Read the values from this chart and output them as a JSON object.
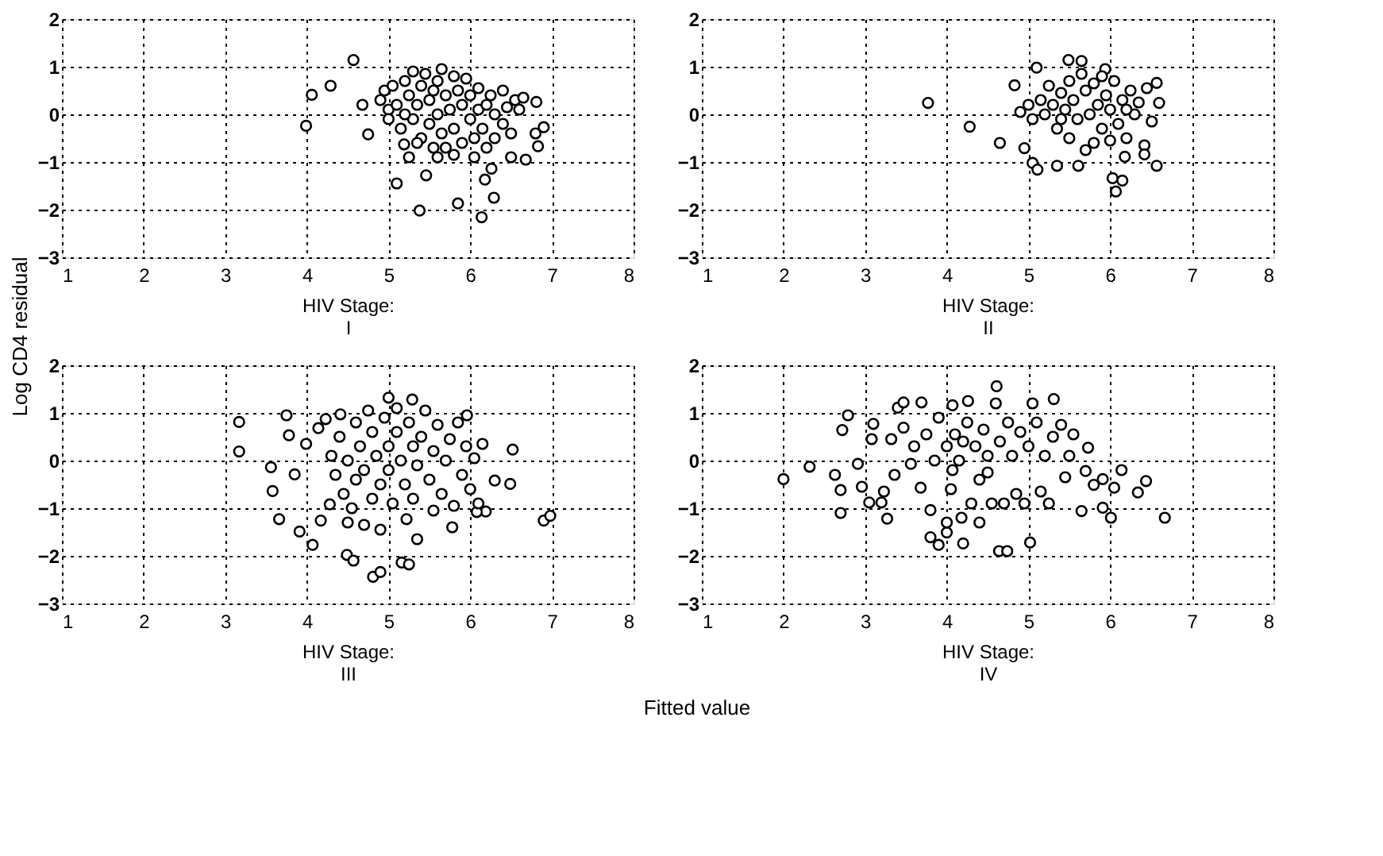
{
  "chart_data": [
    {
      "type": "scatter",
      "xlabel": "HIV Stage:\nI",
      "ylabel": "Log CD4 residual",
      "annotations": [
        "Fitted value"
      ],
      "xlim": [
        1,
        8
      ],
      "ylim": [
        -3,
        2
      ],
      "xticks": [
        1,
        2,
        3,
        4,
        5,
        6,
        7,
        8
      ],
      "yticks": [
        -3,
        -2,
        -1,
        0,
        1,
        2
      ],
      "grid": true,
      "marker": "circle",
      "series": [
        {
          "color": "#000000",
          "x": [
            3.99,
            4.06,
            4.29,
            4.57,
            4.68,
            4.75,
            5.1,
            5.38,
            5.46,
            5.85,
            6.14,
            6.18,
            6.29,
            6.26,
            6.68,
            6.81,
            6.8,
            6.83,
            6.9,
            5.19,
            5.25,
            4.9,
            4.95,
            5.0,
            5.05,
            5.1,
            5.15,
            5.2,
            5.25,
            5.3,
            5.3,
            5.35,
            5.4,
            5.4,
            5.45,
            5.5,
            5.5,
            5.55,
            5.6,
            5.6,
            5.65,
            5.65,
            5.7,
            5.7,
            5.75,
            5.8,
            5.8,
            5.85,
            5.9,
            5.9,
            5.95,
            6.0,
            6.0,
            6.05,
            6.05,
            6.1,
            6.1,
            6.15,
            6.2,
            6.25,
            6.3,
            6.3,
            6.4,
            6.4,
            6.45,
            6.5,
            6.5,
            6.55,
            6.6,
            6.65,
            5.0,
            5.2,
            5.6,
            5.8,
            6.2,
            5.55,
            5.35
          ],
          "values": [
            -0.24,
            0.41,
            0.6,
            1.14,
            0.2,
            -0.42,
            -1.45,
            -2.02,
            -1.28,
            -1.87,
            -2.16,
            -1.37,
            -1.75,
            -1.14,
            -0.95,
            0.26,
            -0.4,
            -0.67,
            -0.27,
            -0.63,
            -0.9,
            0.3,
            0.5,
            0.1,
            0.6,
            0.2,
            -0.3,
            0.7,
            0.4,
            0.9,
            -0.1,
            0.2,
            0.6,
            -0.5,
            0.85,
            0.3,
            -0.2,
            -0.7,
            0.7,
            0.0,
            0.95,
            -0.4,
            0.4,
            -0.7,
            0.1,
            0.8,
            -0.3,
            0.5,
            -0.6,
            0.2,
            0.75,
            -0.1,
            0.4,
            -0.5,
            -0.9,
            0.55,
            0.1,
            -0.3,
            -0.7,
            0.4,
            0.0,
            -0.5,
            0.5,
            -0.2,
            0.15,
            -0.4,
            -0.9,
            0.3,
            0.1,
            0.35,
            -0.1,
            0.0,
            -0.9,
            -0.85,
            0.2,
            0.5,
            -0.6
          ]
        }
      ]
    },
    {
      "type": "scatter",
      "xlabel": "HIV Stage:\nII",
      "xlim": [
        1,
        8
      ],
      "ylim": [
        -3,
        2
      ],
      "xticks": [
        1,
        2,
        3,
        4,
        5,
        6,
        7,
        8
      ],
      "yticks": [
        -3,
        -2,
        -1,
        0,
        1,
        2
      ],
      "grid": true,
      "marker": "circle",
      "series": [
        {
          "color": "#000000",
          "x": [
            3.77,
            4.28,
            4.65,
            4.83,
            4.95,
            5.05,
            5.11,
            5.1,
            5.35,
            5.49,
            5.61,
            5.65,
            5.94,
            6.03,
            6.07,
            6.15,
            6.18,
            6.42,
            6.42,
            6.57,
            6.6,
            6.57,
            6.51,
            4.9,
            5.0,
            5.05,
            5.15,
            5.2,
            5.25,
            5.3,
            5.35,
            5.4,
            5.45,
            5.5,
            5.5,
            5.55,
            5.6,
            5.65,
            5.7,
            5.75,
            5.8,
            5.8,
            5.85,
            5.9,
            5.95,
            6.0,
            6.0,
            6.05,
            6.1,
            6.15,
            6.2,
            6.25,
            6.3,
            6.35,
            6.45,
            5.7,
            5.4,
            5.9,
            6.2
          ],
          "values": [
            0.24,
            -0.26,
            -0.6,
            0.61,
            -0.71,
            -1.02,
            -1.16,
            0.98,
            -1.08,
            1.14,
            -1.08,
            1.12,
            0.95,
            -1.34,
            -1.62,
            -1.39,
            -0.89,
            -0.65,
            -0.84,
            -1.08,
            0.24,
            0.66,
            -0.15,
            0.05,
            0.2,
            -0.1,
            0.3,
            0.0,
            0.6,
            0.2,
            -0.3,
            0.45,
            0.1,
            -0.5,
            0.7,
            0.3,
            -0.1,
            0.85,
            0.5,
            0.0,
            -0.6,
            0.65,
            0.2,
            -0.3,
            0.4,
            -0.55,
            0.1,
            0.7,
            -0.2,
            0.3,
            -0.5,
            0.5,
            0.0,
            0.25,
            0.55,
            -0.75,
            -0.1,
            0.8,
            0.1
          ]
        }
      ]
    },
    {
      "type": "scatter",
      "xlabel": "HIV Stage:\nIII",
      "xlim": [
        1,
        8
      ],
      "ylim": [
        -3,
        2
      ],
      "xticks": [
        1,
        2,
        3,
        4,
        5,
        6,
        7,
        8
      ],
      "yticks": [
        -3,
        -2,
        -1,
        0,
        1,
        2
      ],
      "grid": true,
      "marker": "circle",
      "series": [
        {
          "color": "#000000",
          "x": [
            3.17,
            3.17,
            3.56,
            3.58,
            3.66,
            3.75,
            3.78,
            3.85,
            3.91,
            4.07,
            3.99,
            4.14,
            4.23,
            4.28,
            4.41,
            4.49,
            4.57,
            4.81,
            4.9,
            4.9,
            5.16,
            5.25,
            5.22,
            5.35,
            5.78,
            6.52,
            6.49,
            6.3,
            6.9,
            6.98,
            5.0,
            5.29,
            5.96,
            6.19,
            6.08,
            4.17,
            4.3,
            4.35,
            4.4,
            4.45,
            4.5,
            4.55,
            4.6,
            4.6,
            4.65,
            4.7,
            4.75,
            4.8,
            4.8,
            4.85,
            4.9,
            4.95,
            5.0,
            5.0,
            5.05,
            5.1,
            5.1,
            5.15,
            5.2,
            5.25,
            5.3,
            5.3,
            5.35,
            5.4,
            5.45,
            5.5,
            5.55,
            5.6,
            5.65,
            5.7,
            5.75,
            5.8,
            5.85,
            5.9,
            5.95,
            6.0,
            6.05,
            6.1,
            6.15,
            4.7,
            4.5,
            5.55
          ],
          "values": [
            0.81,
            0.19,
            -0.14,
            -0.64,
            -1.23,
            0.95,
            0.53,
            -0.29,
            -1.49,
            -1.77,
            0.35,
            0.68,
            0.87,
            -0.92,
            0.97,
            -1.98,
            -2.1,
            -2.44,
            -2.34,
            -1.45,
            -2.14,
            -2.18,
            -1.23,
            -1.65,
            -1.4,
            0.23,
            -0.49,
            -0.42,
            -1.26,
            -1.16,
            1.32,
            1.28,
            0.95,
            -1.07,
            -1.08,
            -1.26,
            0.1,
            -0.3,
            0.5,
            -0.7,
            0.0,
            -1.0,
            0.8,
            -0.4,
            0.3,
            -0.2,
            1.05,
            0.6,
            -0.8,
            0.1,
            -0.5,
            0.9,
            0.3,
            -0.2,
            -0.9,
            1.1,
            0.6,
            0.0,
            -0.5,
            0.8,
            0.3,
            -0.8,
            -0.1,
            0.5,
            1.05,
            -0.4,
            0.2,
            0.75,
            -0.7,
            0.0,
            0.45,
            -0.95,
            0.8,
            -0.3,
            0.3,
            -0.6,
            0.05,
            -0.9,
            0.35,
            -1.35,
            -1.3,
            -1.05
          ]
        }
      ]
    },
    {
      "type": "scatter",
      "xlabel": "HIV Stage:\nIV",
      "xlim": [
        1,
        8
      ],
      "ylim": [
        -3,
        2
      ],
      "xticks": [
        1,
        2,
        3,
        4,
        5,
        6,
        7,
        8
      ],
      "yticks": [
        -3,
        -2,
        -1,
        0,
        1,
        2
      ],
      "grid": true,
      "marker": "circle",
      "series": [
        {
          "color": "#000000",
          "x": [
            2.0,
            2.32,
            2.63,
            2.7,
            2.7,
            2.72,
            2.79,
            2.91,
            2.96,
            3.05,
            3.08,
            3.1,
            3.2,
            3.27,
            3.23,
            3.32,
            3.36,
            3.4,
            3.47,
            3.47,
            3.56,
            3.68,
            3.69,
            3.8,
            3.8,
            3.9,
            4.0,
            4.0,
            4.07,
            4.07,
            4.18,
            4.2,
            4.26,
            4.4,
            4.61,
            4.64,
            4.74,
            5.02,
            5.31,
            5.65,
            5.73,
            5.91,
            6.01,
            6.14,
            6.05,
            6.34,
            6.44,
            6.67,
            5.7,
            5.8,
            5.91,
            3.6,
            3.75,
            3.85,
            3.9,
            4.0,
            4.05,
            4.1,
            4.15,
            4.25,
            4.3,
            4.35,
            4.4,
            4.45,
            4.5,
            4.55,
            4.6,
            4.65,
            4.7,
            4.75,
            4.8,
            4.85,
            4.9,
            4.95,
            5.0,
            5.05,
            5.1,
            5.15,
            5.2,
            5.25,
            5.3,
            5.4,
            5.45,
            5.5,
            5.55,
            4.2,
            4.5
          ],
          "values": [
            -0.39,
            -0.13,
            -0.3,
            -0.62,
            -1.1,
            0.64,
            0.95,
            -0.07,
            -0.55,
            -0.88,
            0.45,
            0.77,
            -0.88,
            -1.22,
            -0.65,
            0.45,
            -0.3,
            1.11,
            1.22,
            0.69,
            -0.07,
            -0.57,
            1.22,
            -1.04,
            -1.61,
            -1.77,
            -1.51,
            -1.3,
            -0.2,
            1.16,
            -1.2,
            -1.74,
            1.25,
            -1.3,
            1.56,
            -1.9,
            -1.9,
            -1.72,
            1.29,
            -1.06,
            0.27,
            -0.99,
            -1.2,
            -0.2,
            -0.57,
            -0.67,
            -0.43,
            -1.2,
            -0.22,
            -0.51,
            -0.39,
            0.3,
            0.55,
            0.0,
            0.9,
            0.3,
            -0.6,
            0.55,
            0.0,
            0.8,
            -0.9,
            0.3,
            -0.4,
            0.65,
            0.1,
            -0.9,
            1.2,
            0.4,
            -0.9,
            0.8,
            0.1,
            -0.7,
            0.6,
            -0.9,
            0.3,
            1.2,
            0.8,
            -0.65,
            0.1,
            -0.9,
            0.5,
            0.75,
            -0.35,
            0.1,
            0.55,
            0.4,
            -0.25
          ]
        }
      ]
    }
  ]
}
